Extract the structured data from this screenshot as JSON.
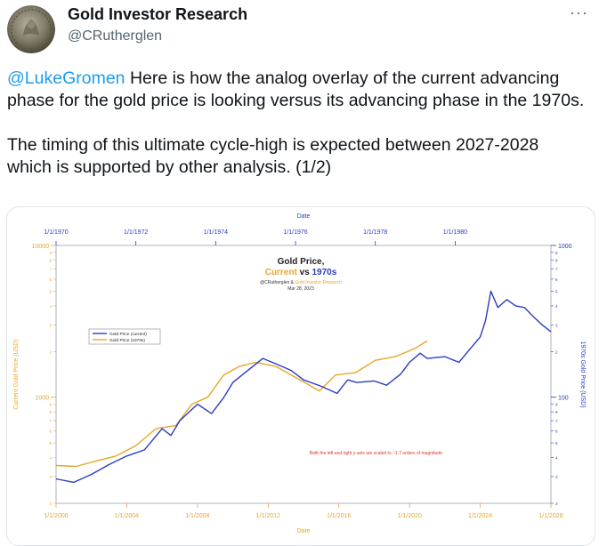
{
  "tweet": {
    "author_name": "Gold Investor Research",
    "author_handle": "@CRutherglen",
    "more_icon": "ellipsis-icon",
    "mention": "@LukeGromen",
    "paragraph1_rest": " Here is how the analog overlay of the current advancing phase for the gold price is looking versus its advancing phase in the 1970s.",
    "paragraph2": "The timing of this ultimate cycle-high is expected between 2027-2028 which is supported by other analysis. (1/2)"
  },
  "chart_data": {
    "type": "line",
    "title": "Gold Price,",
    "subtitle_current": "Current",
    "subtitle_vs": " vs ",
    "subtitle_1970s": "1970s",
    "credit_1": "@CRutherglen & ",
    "credit_2": "Gold Investor Research",
    "date": "Mar 28, 2023",
    "xlabel_bottom": "Date",
    "xlabel_top": "Date",
    "ylabel_left": "Current Gold Price (USD)",
    "ylabel_right": "1970s Gold Price (USD)",
    "note": "Both the left and right y-axis are scaled to ~1.7 orders of magnitude.",
    "x_bottom_range": [
      2000,
      2028
    ],
    "x_top_range": [
      1970,
      1982.4
    ],
    "ylim_left": [
      200,
      10000
    ],
    "ylim_right": [
      20,
      1000
    ],
    "y_scale": "log",
    "legend_position": "left",
    "grid": false,
    "colors": {
      "current": "#2b3bc4",
      "1970s": "#e8a62a",
      "note": "#d9352b"
    },
    "x_bottom_ticks": [
      "1/1/2000",
      "1/1/2004",
      "1/1/2008",
      "1/1/2012",
      "1/1/2016",
      "1/1/2020",
      "1/1/2024",
      "1/1/2028"
    ],
    "x_top_ticks": [
      "1/1/1970",
      "1/1/1972",
      "1/1/1974",
      "1/1/1976",
      "1/1/1978",
      "1/1/1980"
    ],
    "y_left_ticks": [
      "10000",
      "1000"
    ],
    "y_right_ticks": [
      "1000",
      "100"
    ],
    "y_left_minor": [
      "9",
      "8",
      "7",
      "6",
      "5",
      "4",
      "3",
      "2",
      "9",
      "8",
      "7",
      "6",
      "5",
      "4",
      "3",
      "2"
    ],
    "y_right_minor": [
      "9",
      "8",
      "7",
      "6",
      "5",
      "4",
      "3",
      "2",
      "9",
      "8",
      "7",
      "6",
      "5",
      "4",
      "3",
      "2"
    ],
    "series": [
      {
        "name": "Gold Price (current)",
        "x": [
          2000,
          2001,
          2002,
          2003,
          2004,
          2005,
          2006,
          2006.5,
          2007,
          2008,
          2008.8,
          2009.5,
          2010,
          2011,
          2011.7,
          2012.5,
          2013.3,
          2014,
          2015,
          2015.9,
          2016.5,
          2017,
          2018,
          2018.7,
          2019.5,
          2020,
          2020.6,
          2021,
          2022,
          2022.8,
          2023.3,
          2024,
          2024.3,
          2024.6,
          2025,
          2025.5,
          2026,
          2026.5,
          2027,
          2027.5,
          2028
        ],
        "y": [
          290,
          275,
          310,
          360,
          410,
          450,
          620,
          560,
          700,
          900,
          780,
          1000,
          1250,
          1550,
          1800,
          1650,
          1500,
          1300,
          1180,
          1060,
          1300,
          1250,
          1280,
          1200,
          1420,
          1700,
          1950,
          1800,
          1850,
          1700,
          2000,
          2500,
          3200,
          5000,
          3900,
          4400,
          4000,
          3900,
          3400,
          3000,
          2700
        ]
      },
      {
        "name": "Gold Price (1970s)",
        "x": [
          1970,
          1970.5,
          1971,
          1971.5,
          1972,
          1972.5,
          1973,
          1973.4,
          1973.8,
          1974.2,
          1974.6,
          1975,
          1975.5,
          1976,
          1976.6,
          1977,
          1977.5,
          1978,
          1978.5,
          1979,
          1979.3
        ],
        "y": [
          35.5,
          35.0,
          38.0,
          41.0,
          48.0,
          62.0,
          65.0,
          90.0,
          100.0,
          140.0,
          160.0,
          170.0,
          160.0,
          135.0,
          110.0,
          140.0,
          145.0,
          175.0,
          185.0,
          210.0,
          235.0
        ]
      }
    ]
  }
}
